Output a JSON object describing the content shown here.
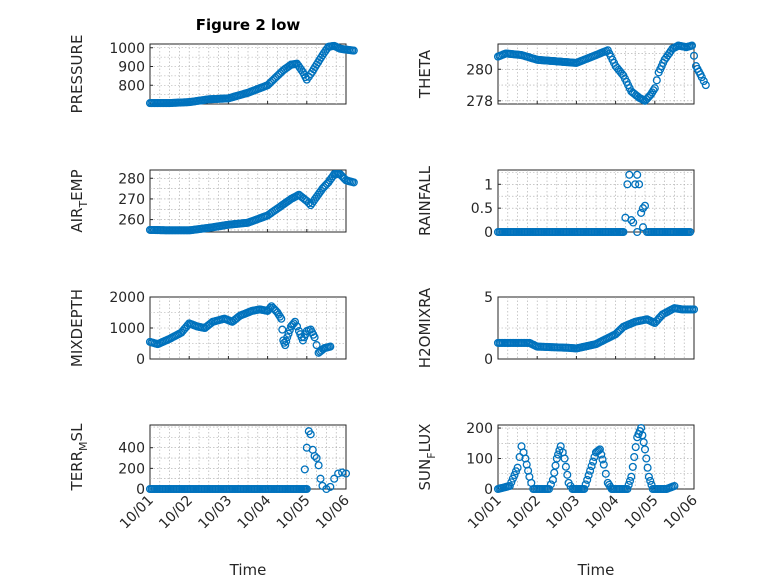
{
  "chart_data": [
    {
      "type": "scatter",
      "title": "Figure 2 low",
      "ylabel": "PRESSURE",
      "xlabel": "",
      "xlim": [
        "10/01",
        "10/06"
      ],
      "ylim": [
        700,
        1020
      ],
      "yticks": [
        800,
        900,
        1000
      ],
      "xticks": [
        "10/01",
        "10/02",
        "10/03",
        "10/04",
        "10/05",
        "10/06"
      ],
      "show_xtick_labels": false,
      "grid": true,
      "series": [
        {
          "keyframes": [
            [
              0.0,
              705
            ],
            [
              0.5,
              705
            ],
            [
              1.0,
              710
            ],
            [
              1.5,
              725
            ],
            [
              2.0,
              730
            ],
            [
              2.5,
              760
            ],
            [
              3.0,
              800
            ],
            [
              3.2,
              840
            ],
            [
              3.4,
              880
            ],
            [
              3.6,
              910
            ],
            [
              3.75,
              915
            ],
            [
              3.9,
              870
            ],
            [
              4.0,
              830
            ],
            [
              4.1,
              860
            ],
            [
              4.25,
              910
            ],
            [
              4.4,
              960
            ],
            [
              4.55,
              1005
            ],
            [
              4.7,
              1010
            ],
            [
              4.85,
              995
            ],
            [
              5.0,
              990
            ],
            [
              5.2,
              985
            ]
          ]
        }
      ]
    },
    {
      "type": "scatter",
      "title": "",
      "ylabel": "THETA",
      "xlabel": "",
      "xlim": [
        "10/01",
        "10/06"
      ],
      "ylim": [
        277.8,
        281.6
      ],
      "yticks": [
        278,
        280
      ],
      "xticks": [
        "10/01",
        "10/02",
        "10/03",
        "10/04",
        "10/05",
        "10/06"
      ],
      "show_xtick_labels": false,
      "grid": true,
      "series": [
        {
          "keyframes": [
            [
              0.0,
              280.8
            ],
            [
              0.2,
              281.0
            ],
            [
              0.6,
              280.9
            ],
            [
              1.0,
              280.6
            ],
            [
              1.5,
              280.5
            ],
            [
              2.0,
              280.4
            ],
            [
              2.5,
              280.9
            ],
            [
              2.8,
              281.2
            ],
            [
              3.0,
              280.2
            ],
            [
              3.2,
              279.6
            ],
            [
              3.4,
              278.6
            ],
            [
              3.6,
              278.2
            ],
            [
              3.75,
              278.0
            ],
            [
              3.9,
              278.4
            ],
            [
              4.0,
              278.8
            ],
            [
              4.1,
              279.8
            ],
            [
              4.25,
              280.6
            ],
            [
              4.45,
              281.3
            ],
            [
              4.6,
              281.5
            ],
            [
              4.8,
              281.4
            ],
            [
              4.95,
              281.5
            ],
            [
              5.05,
              280.2
            ],
            [
              5.2,
              279.5
            ],
            [
              5.3,
              279.0
            ]
          ]
        }
      ]
    },
    {
      "type": "scatter",
      "title": "",
      "ylabel": "AIR_TEMP",
      "ylabel_main": "AIR",
      "ylabel_sub": "T",
      "ylabel_rest": "EMP",
      "xlabel": "",
      "xlim": [
        "10/01",
        "10/06"
      ],
      "ylim": [
        254,
        284
      ],
      "yticks": [
        260,
        270,
        280
      ],
      "xticks": [
        "10/01",
        "10/02",
        "10/03",
        "10/04",
        "10/05",
        "10/06"
      ],
      "show_xtick_labels": false,
      "grid": true,
      "series": [
        {
          "keyframes": [
            [
              0.0,
              255
            ],
            [
              0.5,
              254.8
            ],
            [
              1.0,
              254.8
            ],
            [
              1.5,
              256
            ],
            [
              2.0,
              257.5
            ],
            [
              2.5,
              258.5
            ],
            [
              3.0,
              262
            ],
            [
              3.3,
              266
            ],
            [
              3.6,
              270
            ],
            [
              3.8,
              272
            ],
            [
              4.0,
              269
            ],
            [
              4.1,
              267
            ],
            [
              4.25,
              271
            ],
            [
              4.4,
              275
            ],
            [
              4.55,
              278
            ],
            [
              4.7,
              282
            ],
            [
              4.85,
              282
            ],
            [
              5.0,
              279
            ],
            [
              5.2,
              278
            ]
          ]
        }
      ]
    },
    {
      "type": "scatter",
      "title": "",
      "ylabel": "RAINFALL",
      "xlabel": "",
      "xlim": [
        "10/01",
        "10/06"
      ],
      "ylim": [
        0,
        1.3
      ],
      "yticks": [
        0,
        0.5,
        1
      ],
      "ytick_labels": [
        "0",
        "0.5",
        "1"
      ],
      "xticks": [
        "10/01",
        "10/02",
        "10/03",
        "10/04",
        "10/05",
        "10/06"
      ],
      "show_xtick_labels": false,
      "grid": true,
      "series": [
        {
          "keyframes": [
            [
              0.0,
              0
            ],
            [
              3.1,
              0
            ],
            [
              3.2,
              0
            ]
          ]
        },
        {
          "points": [
            [
              3.25,
              0.3
            ],
            [
              3.3,
              1.0
            ],
            [
              3.35,
              1.2
            ],
            [
              3.4,
              0.25
            ],
            [
              3.45,
              0.2
            ],
            [
              3.5,
              1.0
            ],
            [
              3.55,
              1.2
            ],
            [
              3.6,
              1.0
            ],
            [
              3.65,
              0.4
            ],
            [
              3.7,
              0.5
            ],
            [
              3.75,
              0.55
            ],
            [
              3.7,
              0.1
            ],
            [
              3.55,
              0.0
            ]
          ]
        },
        {
          "keyframes": [
            [
              3.8,
              0
            ],
            [
              4.6,
              0
            ],
            [
              4.9,
              0
            ]
          ]
        }
      ]
    },
    {
      "type": "scatter",
      "title": "",
      "ylabel": "MIXDEPTH",
      "xlabel": "",
      "xlim": [
        "10/01",
        "10/06"
      ],
      "ylim": [
        0,
        2000
      ],
      "yticks": [
        0,
        1000,
        2000
      ],
      "xticks": [
        "10/01",
        "10/02",
        "10/03",
        "10/04",
        "10/05",
        "10/06"
      ],
      "show_xtick_labels": false,
      "grid": true,
      "series": [
        {
          "keyframes": [
            [
              0.0,
              550
            ],
            [
              0.2,
              480
            ],
            [
              0.5,
              650
            ],
            [
              0.8,
              850
            ],
            [
              1.0,
              1150
            ],
            [
              1.2,
              1050
            ],
            [
              1.4,
              1000
            ],
            [
              1.6,
              1200
            ],
            [
              1.9,
              1300
            ],
            [
              2.1,
              1200
            ],
            [
              2.3,
              1400
            ],
            [
              2.6,
              1550
            ],
            [
              2.8,
              1600
            ],
            [
              3.0,
              1550
            ],
            [
              3.1,
              1700
            ],
            [
              3.25,
              1500
            ],
            [
              3.35,
              1300
            ],
            [
              3.4,
              600
            ],
            [
              3.45,
              450
            ],
            [
              3.5,
              700
            ],
            [
              3.6,
              1050
            ],
            [
              3.7,
              1200
            ],
            [
              3.8,
              900
            ],
            [
              3.9,
              600
            ],
            [
              4.0,
              900
            ],
            [
              4.1,
              950
            ],
            [
              4.2,
              700
            ],
            [
              4.3,
              200
            ],
            [
              4.45,
              350
            ],
            [
              4.6,
              400
            ]
          ]
        }
      ]
    },
    {
      "type": "scatter",
      "title": "",
      "ylabel": "H2OMIXRA",
      "xlabel": "",
      "xlim": [
        "10/01",
        "10/06"
      ],
      "ylim": [
        0,
        5
      ],
      "yticks": [
        0,
        5
      ],
      "xticks": [
        "10/01",
        "10/02",
        "10/03",
        "10/04",
        "10/05",
        "10/06"
      ],
      "show_xtick_labels": false,
      "grid": true,
      "series": [
        {
          "keyframes": [
            [
              0.0,
              1.3
            ],
            [
              0.8,
              1.3
            ],
            [
              1.0,
              1.0
            ],
            [
              1.8,
              0.9
            ],
            [
              2.0,
              0.85
            ],
            [
              2.5,
              1.2
            ],
            [
              3.0,
              2.0
            ],
            [
              3.2,
              2.6
            ],
            [
              3.5,
              3.0
            ],
            [
              3.8,
              3.2
            ],
            [
              4.0,
              2.9
            ],
            [
              4.2,
              3.6
            ],
            [
              4.5,
              4.1
            ],
            [
              4.7,
              4.0
            ],
            [
              5.0,
              4.0
            ]
          ]
        }
      ]
    },
    {
      "type": "scatter",
      "title": "",
      "ylabel": "TERR_MSL",
      "ylabel_main": "TERR",
      "ylabel_sub": "M",
      "ylabel_rest": "SL",
      "xlabel": "Time",
      "xlim": [
        "10/01",
        "10/06"
      ],
      "ylim": [
        0,
        620
      ],
      "yticks": [
        0,
        200,
        400
      ],
      "xticks": [
        "10/01",
        "10/02",
        "10/03",
        "10/04",
        "10/05",
        "10/06"
      ],
      "show_xtick_labels": true,
      "grid": true,
      "series": [
        {
          "keyframes": [
            [
              0.0,
              0
            ],
            [
              3.9,
              0
            ],
            [
              4.0,
              0
            ]
          ]
        },
        {
          "points": [
            [
              3.95,
              190
            ],
            [
              4.0,
              400
            ],
            [
              4.05,
              560
            ],
            [
              4.1,
              530
            ],
            [
              4.15,
              380
            ],
            [
              4.2,
              320
            ],
            [
              4.25,
              300
            ],
            [
              4.3,
              230
            ],
            [
              4.35,
              100
            ],
            [
              4.4,
              30
            ],
            [
              4.5,
              0
            ],
            [
              4.6,
              20
            ],
            [
              4.7,
              100
            ],
            [
              4.8,
              150
            ],
            [
              4.9,
              160
            ],
            [
              5.0,
              150
            ]
          ]
        }
      ]
    },
    {
      "type": "scatter",
      "title": "",
      "ylabel": "SUN_FLUX",
      "ylabel_main": "SUN",
      "ylabel_sub": "F",
      "ylabel_rest": "LUX",
      "xlabel": "Time",
      "xlim": [
        "10/01",
        "10/06"
      ],
      "ylim": [
        0,
        210
      ],
      "yticks": [
        0,
        100,
        200
      ],
      "xticks": [
        "10/01",
        "10/02",
        "10/03",
        "10/04",
        "10/05",
        "10/06"
      ],
      "show_xtick_labels": true,
      "grid": true,
      "series": [
        {
          "keyframes": [
            [
              0.0,
              0
            ],
            [
              0.3,
              10
            ],
            [
              0.5,
              70
            ],
            [
              0.6,
              140
            ],
            [
              0.7,
              100
            ],
            [
              0.8,
              40
            ],
            [
              0.9,
              0
            ],
            [
              1.3,
              0
            ],
            [
              1.4,
              30
            ],
            [
              1.5,
              100
            ],
            [
              1.6,
              140
            ],
            [
              1.7,
              100
            ],
            [
              1.8,
              20
            ],
            [
              1.9,
              0
            ],
            [
              2.2,
              0
            ],
            [
              2.35,
              60
            ],
            [
              2.5,
              120
            ],
            [
              2.6,
              130
            ],
            [
              2.7,
              80
            ],
            [
              2.8,
              20
            ],
            [
              2.9,
              0
            ],
            [
              3.3,
              0
            ],
            [
              3.4,
              40
            ],
            [
              3.55,
              170
            ],
            [
              3.65,
              200
            ],
            [
              3.75,
              130
            ],
            [
              3.85,
              40
            ],
            [
              3.95,
              0
            ],
            [
              4.3,
              0
            ],
            [
              4.5,
              10
            ]
          ]
        }
      ]
    }
  ]
}
